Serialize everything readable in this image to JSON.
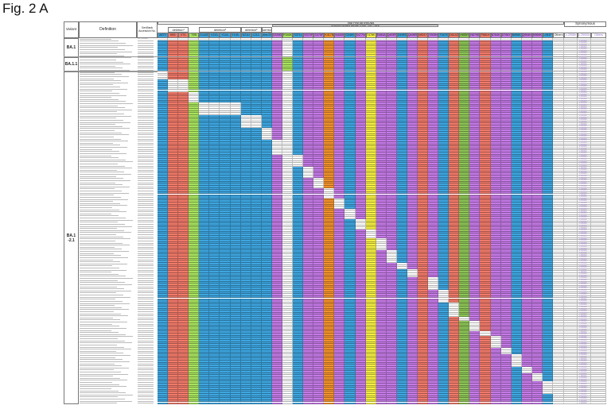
{
  "title": "Fig. 2 A",
  "header": {
    "variant": "Variant",
    "definition": "Definition",
    "accession": "GenBank Accession No.",
    "nonsynonymous": "Non-synonymous",
    "synonymous": "Synonymous",
    "rbd": "Receptor binding domain (RBD : 319 - 541)",
    "deletion1": "deletion¹",
    "deletion2": "deletion²",
    "deletion3": "deletion³",
    "insertion4": "insertion⁴",
    "others": "Others"
  },
  "columns": [
    {
      "label": "A67V",
      "color": "#3ea6e0"
    },
    {
      "label": "H69-",
      "color": "#f07a6a"
    },
    {
      "label": "V70-",
      "color": "#f07a6a"
    },
    {
      "label": "T95I",
      "color": "#a8e25e"
    },
    {
      "label": "G142D",
      "color": "#3ea6e0"
    },
    {
      "label": "V143-",
      "color": "#3ea6e0"
    },
    {
      "label": "Y144-",
      "color": "#3ea6e0"
    },
    {
      "label": "Y145-",
      "color": "#3ea6e0"
    },
    {
      "label": "N211I",
      "color": "#3ea6e0"
    },
    {
      "label": "L212-",
      "color": "#3ea6e0"
    },
    {
      "label": "214ins EPE",
      "color": "#3ea6e0"
    },
    {
      "label": "G339D",
      "color": "#c47ae6"
    },
    {
      "label": "R346K",
      "color": "#a8e25e"
    },
    {
      "label": "S371L",
      "color": "#3ea6e0"
    },
    {
      "label": "S373P",
      "color": "#c47ae6"
    },
    {
      "label": "S375F",
      "color": "#c47ae6"
    },
    {
      "label": "K417N",
      "color": "#f0922e"
    },
    {
      "label": "N440K",
      "color": "#c47ae6"
    },
    {
      "label": "G446S",
      "color": "#3ea6e0"
    },
    {
      "label": "S477N",
      "color": "#c47ae6"
    },
    {
      "label": "T478K",
      "color": "#f4ee44"
    },
    {
      "label": "E484A",
      "color": "#c47ae6"
    },
    {
      "label": "Q493R",
      "color": "#c47ae6"
    },
    {
      "label": "G496S",
      "color": "#3ea6e0"
    },
    {
      "label": "Q498R",
      "color": "#c47ae6"
    },
    {
      "label": "N501Y",
      "color": "#f07a6a"
    },
    {
      "label": "Y505H",
      "color": "#c47ae6"
    },
    {
      "label": "T547K",
      "color": "#3ea6e0"
    },
    {
      "label": "D614G",
      "color": "#f07a6a"
    },
    {
      "label": "H655Y",
      "color": "#8cc456"
    },
    {
      "label": "N679K",
      "color": "#c47ae6"
    },
    {
      "label": "P681H",
      "color": "#f07a6a"
    },
    {
      "label": "N764K",
      "color": "#c47ae6"
    },
    {
      "label": "D796Y",
      "color": "#c47ae6"
    },
    {
      "label": "N856K",
      "color": "#3ea6e0"
    },
    {
      "label": "Q954H",
      "color": "#c47ae6"
    },
    {
      "label": "N969K",
      "color": "#c47ae6"
    },
    {
      "label": "L981F",
      "color": "#3ea6e0"
    }
  ],
  "synonymous_columns": [
    "c.2558b",
    "c.25000c",
    "Others"
  ],
  "synonymous_value": "c.25000c",
  "reference_accession": "NC_045512",
  "groups": [
    {
      "variant": "BA.1",
      "rows": 9,
      "has_R346K": false
    },
    {
      "variant": "BA.1.1",
      "rows": 7,
      "has_R346K": true
    },
    {
      "variant": "BA.1\n-2.1",
      "rows": 160,
      "has_R346K": false
    }
  ],
  "missing_blocks": [
    {
      "cols": [
        "A67V"
      ],
      "rows": 4
    },
    {
      "cols": [
        "H69-",
        "V70-"
      ],
      "rows": 6
    },
    {
      "cols": [
        "T95I"
      ],
      "rows": 5
    },
    {
      "cols": [
        "G142D",
        "V143-",
        "Y144-",
        "Y145-"
      ],
      "rows": 6
    },
    {
      "cols": [
        "N211I",
        "L212-"
      ],
      "rows": 6
    },
    {
      "cols": [
        "214ins EPE"
      ],
      "rows": 6
    },
    {
      "cols": [
        "G339D"
      ],
      "rows": 7
    },
    {
      "cols": [
        "S371L"
      ],
      "rows": 6
    },
    {
      "cols": [
        "S373P"
      ],
      "rows": 5
    },
    {
      "cols": [
        "S375F"
      ],
      "rows": 5
    },
    {
      "cols": [
        "K417N"
      ],
      "rows": 5
    },
    {
      "cols": [
        "N440K"
      ],
      "rows": 5
    },
    {
      "cols": [
        "G446S"
      ],
      "rows": 5
    },
    {
      "cols": [
        "S477N"
      ],
      "rows": 5
    },
    {
      "cols": [
        "T478K"
      ],
      "rows": 4
    },
    {
      "cols": [
        "E484A"
      ],
      "rows": 6
    },
    {
      "cols": [
        "Q493R"
      ],
      "rows": 6
    },
    {
      "cols": [
        "G496S"
      ],
      "rows": 3
    },
    {
      "cols": [
        "Q498R"
      ],
      "rows": 4
    },
    {
      "cols": [
        "Y505H"
      ],
      "rows": 6
    },
    {
      "cols": [
        "T547K"
      ],
      "rows": 6
    },
    {
      "cols": [
        "D614G"
      ],
      "rows": 7
    },
    {
      "cols": [
        "H655Y"
      ],
      "rows": 2
    },
    {
      "cols": [
        "N679K"
      ],
      "rows": 5
    },
    {
      "cols": [
        "P681H"
      ],
      "rows": 2
    },
    {
      "cols": [
        "N764K"
      ],
      "rows": 6
    },
    {
      "cols": [
        "D796Y"
      ],
      "rows": 3
    },
    {
      "cols": [
        "N856K"
      ],
      "rows": 6
    },
    {
      "cols": [
        "Q954H"
      ],
      "rows": 3
    },
    {
      "cols": [
        "N969K"
      ],
      "rows": 4
    },
    {
      "cols": [
        "L981F"
      ],
      "rows": 6
    }
  ]
}
